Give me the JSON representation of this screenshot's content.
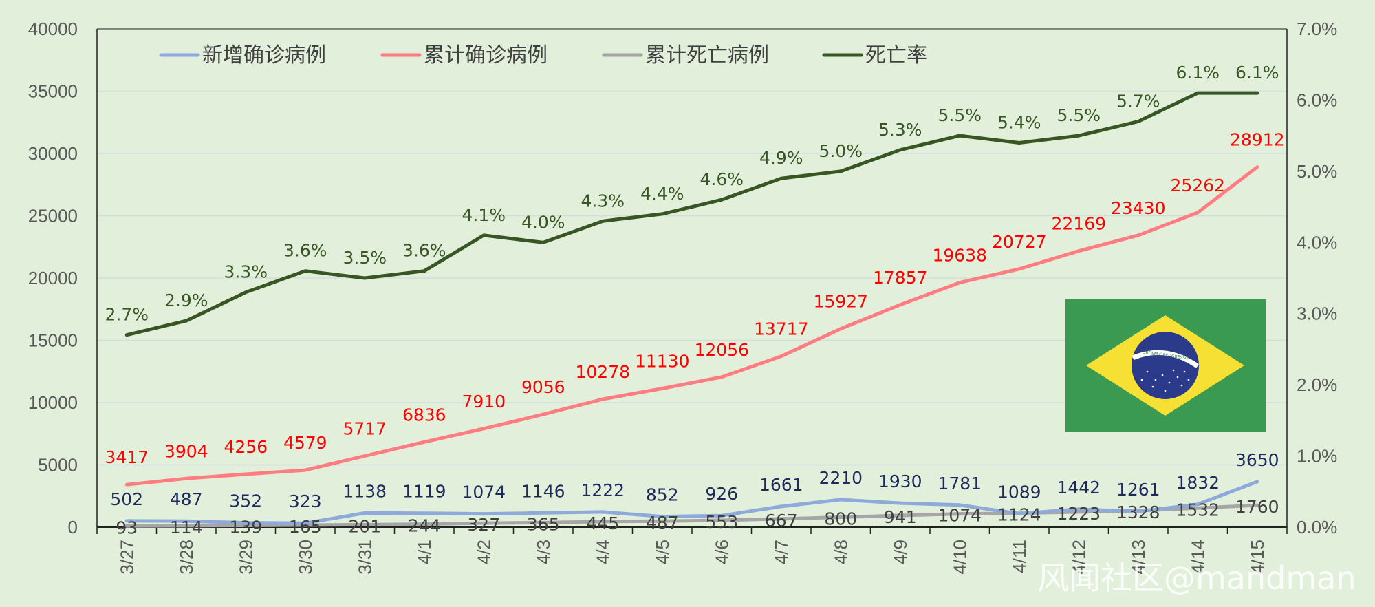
{
  "chart_data": {
    "type": "line",
    "categories": [
      "3/27",
      "3/28",
      "3/29",
      "3/30",
      "3/31",
      "4/1",
      "4/2",
      "4/3",
      "4/4",
      "4/5",
      "4/6",
      "4/7",
      "4/8",
      "4/9",
      "4/10",
      "4/11",
      "4/12",
      "4/13",
      "4/14",
      "4/15"
    ],
    "y_left": {
      "min": 0,
      "max": 40000,
      "step": 5000,
      "ticks": [
        "0",
        "5000",
        "10000",
        "15000",
        "20000",
        "25000",
        "30000",
        "35000",
        "40000"
      ]
    },
    "y_right": {
      "min": 0,
      "max": 0.07,
      "step": 0.01,
      "ticks": [
        "0.0%",
        "1.0%",
        "2.0%",
        "3.0%",
        "4.0%",
        "5.0%",
        "6.0%",
        "7.0%"
      ]
    },
    "grid": true,
    "legend_position": "top",
    "series": [
      {
        "name": "新增确诊病例",
        "axis": "left",
        "color": "#8eaadb",
        "values": [
          502,
          487,
          352,
          323,
          1138,
          1119,
          1074,
          1146,
          1222,
          852,
          926,
          1661,
          2210,
          1930,
          1781,
          1089,
          1442,
          1261,
          1832,
          3650
        ],
        "labels": [
          "502",
          "487",
          "352",
          "323",
          "1138",
          "1119",
          "1074",
          "1146",
          "1222",
          "852",
          "926",
          "1661",
          "2210",
          "1930",
          "1781",
          "1089",
          "1442",
          "1261",
          "1832",
          "3650"
        ],
        "label_color": "#1f2a5c"
      },
      {
        "name": "累计确诊病例",
        "axis": "left",
        "color": "#ff7c80",
        "values": [
          3417,
          3904,
          4256,
          4579,
          5717,
          6836,
          7910,
          9056,
          10278,
          11130,
          12056,
          13717,
          15927,
          17857,
          19638,
          20727,
          22169,
          23430,
          25262,
          28912
        ],
        "labels": [
          "3417",
          "3904",
          "4256",
          "4579",
          "5717",
          "6836",
          "7910",
          "9056",
          "10278",
          "11130",
          "12056",
          "13717",
          "15927",
          "17857",
          "19638",
          "20727",
          "22169",
          "23430",
          "25262",
          "28912"
        ],
        "label_color": "#ff0000"
      },
      {
        "name": "累计死亡病例",
        "axis": "left",
        "color": "#a6a6a6",
        "values": [
          93,
          114,
          139,
          165,
          201,
          244,
          327,
          365,
          445,
          487,
          553,
          667,
          800,
          941,
          1074,
          1124,
          1223,
          1328,
          1532,
          1760
        ],
        "labels": [
          "93",
          "114",
          "139",
          "165",
          "201",
          "244",
          "327",
          "365",
          "445",
          "487",
          "553",
          "667",
          "800",
          "941",
          "1074",
          "1124",
          "1223",
          "1328",
          "1532",
          "1760"
        ],
        "label_color": "#404040"
      },
      {
        "name": "死亡率",
        "axis": "right",
        "color": "#375623",
        "values": [
          0.027,
          0.029,
          0.033,
          0.036,
          0.035,
          0.036,
          0.041,
          0.04,
          0.043,
          0.044,
          0.046,
          0.049,
          0.05,
          0.053,
          0.055,
          0.054,
          0.055,
          0.057,
          0.061,
          0.061
        ],
        "labels": [
          "2.7%",
          "2.9%",
          "3.3%",
          "3.6%",
          "3.5%",
          "3.6%",
          "4.1%",
          "4.0%",
          "4.3%",
          "4.4%",
          "4.6%",
          "4.9%",
          "5.0%",
          "5.3%",
          "5.5%",
          "5.4%",
          "5.5%",
          "5.7%",
          "6.1%",
          "6.1%"
        ],
        "label_color": "#375623"
      }
    ]
  },
  "flag": {
    "banner_text": "ORDEM E PROGRESSO",
    "colors": {
      "green": "#3a9a52",
      "yellow": "#f7e034",
      "blue": "#2b3a8a",
      "white": "#ffffff"
    }
  },
  "watermark": "风闻社区@mandman"
}
